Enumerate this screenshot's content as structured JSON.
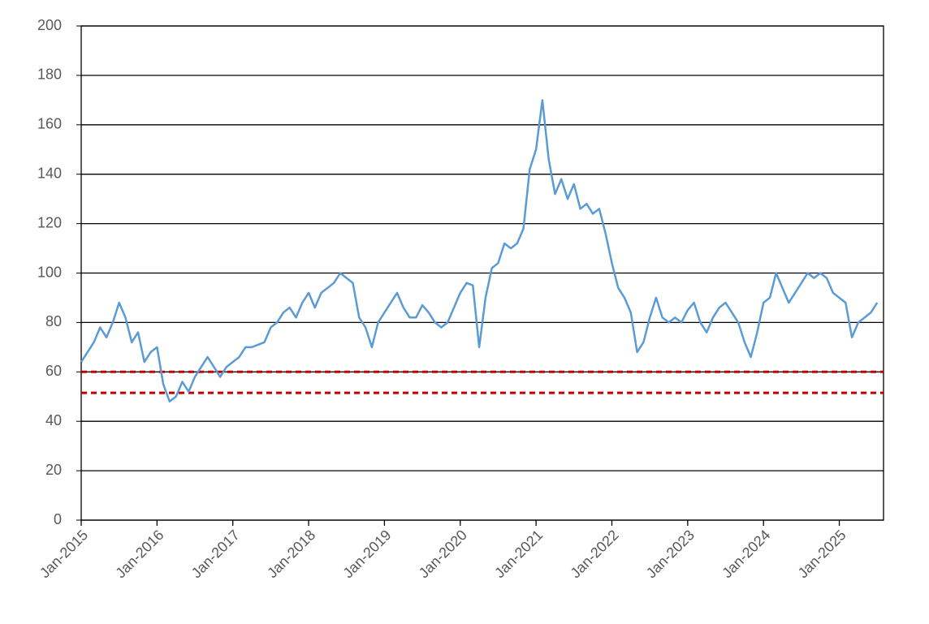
{
  "chart_data": {
    "type": "line",
    "x": [
      "2015-01",
      "2015-02",
      "2015-03",
      "2015-04",
      "2015-05",
      "2015-06",
      "2015-07",
      "2015-08",
      "2015-09",
      "2015-10",
      "2015-11",
      "2015-12",
      "2016-01",
      "2016-02",
      "2016-03",
      "2016-04",
      "2016-05",
      "2016-06",
      "2016-07",
      "2016-08",
      "2016-09",
      "2016-10",
      "2016-11",
      "2016-12",
      "2017-01",
      "2017-02",
      "2017-03",
      "2017-04",
      "2017-05",
      "2017-06",
      "2017-07",
      "2017-08",
      "2017-09",
      "2017-10",
      "2017-11",
      "2017-12",
      "2018-01",
      "2018-02",
      "2018-03",
      "2018-04",
      "2018-05",
      "2018-06",
      "2018-07",
      "2018-08",
      "2018-09",
      "2018-10",
      "2018-11",
      "2018-12",
      "2019-01",
      "2019-02",
      "2019-03",
      "2019-04",
      "2019-05",
      "2019-06",
      "2019-07",
      "2019-08",
      "2019-09",
      "2019-10",
      "2019-11",
      "2019-12",
      "2020-01",
      "2020-02",
      "2020-03",
      "2020-04",
      "2020-05",
      "2020-06",
      "2020-07",
      "2020-08",
      "2020-09",
      "2020-10",
      "2020-11",
      "2020-12",
      "2021-01",
      "2021-02",
      "2021-03",
      "2021-04",
      "2021-05",
      "2021-06",
      "2021-07",
      "2021-08",
      "2021-09",
      "2021-10",
      "2021-11",
      "2021-12",
      "2022-01",
      "2022-02",
      "2022-03",
      "2022-04",
      "2022-05",
      "2022-06",
      "2022-07",
      "2022-08",
      "2022-09",
      "2022-10",
      "2022-11",
      "2022-12",
      "2023-01",
      "2023-02",
      "2023-03",
      "2023-04",
      "2023-05",
      "2023-06",
      "2023-07",
      "2023-08",
      "2023-09",
      "2023-10",
      "2023-11",
      "2023-12",
      "2024-01",
      "2024-02",
      "2024-03",
      "2024-04",
      "2024-05",
      "2024-06",
      "2024-07",
      "2024-08",
      "2024-09",
      "2024-10",
      "2024-11",
      "2024-12",
      "2025-01",
      "2025-02",
      "2025-03",
      "2025-04",
      "2025-05",
      "2025-06",
      "2025-07"
    ],
    "series": [
      {
        "color": "#5b9bd5",
        "values": [
          64,
          68,
          72,
          78,
          74,
          80,
          88,
          82,
          72,
          76,
          64,
          68,
          70,
          55,
          48,
          50,
          56,
          52,
          58,
          62,
          66,
          62,
          58,
          62,
          64,
          66,
          70,
          70,
          71,
          72,
          78,
          80,
          84,
          86,
          82,
          88,
          92,
          86,
          92,
          94,
          96,
          100,
          98,
          96,
          82,
          78,
          70,
          80,
          84,
          88,
          92,
          86,
          82,
          82,
          87,
          84,
          80,
          78,
          80,
          86,
          92,
          96,
          95,
          70,
          90,
          102,
          104,
          112,
          110,
          112,
          118,
          142,
          150,
          170,
          146,
          132,
          138,
          130,
          136,
          126,
          128,
          124,
          126,
          116,
          104,
          94,
          90,
          84,
          68,
          72,
          82,
          90,
          82,
          80,
          82,
          80,
          85,
          88,
          80,
          76,
          82,
          86,
          88,
          84,
          80,
          72,
          66,
          76,
          88,
          90,
          100,
          94,
          88,
          92,
          96,
          100,
          98,
          100,
          98,
          92,
          90,
          88,
          74,
          80,
          82,
          84,
          88
        ]
      }
    ],
    "reference_lines": [
      60,
      51.5
    ],
    "reference_color": "#c00000",
    "xlim": [
      "2015-01",
      "2025-08"
    ],
    "xticks": [
      {
        "value": "2015-01",
        "label": "Jan-2015"
      },
      {
        "value": "2016-01",
        "label": "Jan-2016"
      },
      {
        "value": "2017-01",
        "label": "Jan-2017"
      },
      {
        "value": "2018-01",
        "label": "Jan-2018"
      },
      {
        "value": "2019-01",
        "label": "Jan-2019"
      },
      {
        "value": "2020-01",
        "label": "Jan-2020"
      },
      {
        "value": "2021-01",
        "label": "Jan-2021"
      },
      {
        "value": "2022-01",
        "label": "Jan-2022"
      },
      {
        "value": "2023-01",
        "label": "Jan-2023"
      },
      {
        "value": "2024-01",
        "label": "Jan-2024"
      },
      {
        "value": "2025-01",
        "label": "Jan-2025"
      }
    ],
    "ylim": [
      0,
      200
    ],
    "yticks": [
      0,
      20,
      40,
      60,
      80,
      100,
      120,
      140,
      160,
      180,
      200
    ],
    "grid": true
  }
}
